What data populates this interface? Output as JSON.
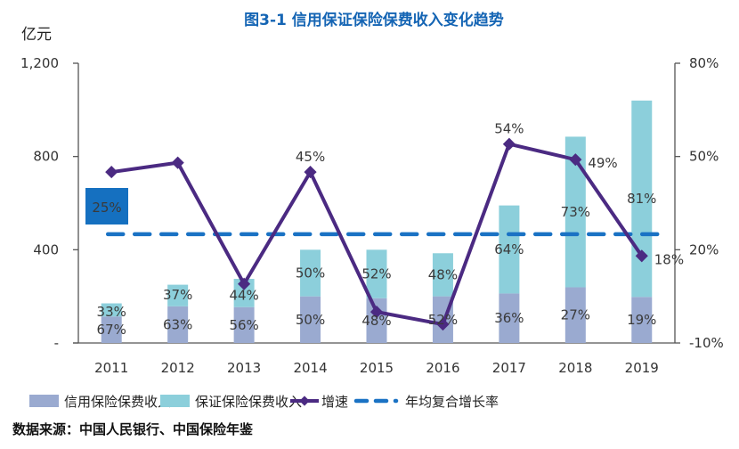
{
  "chart_data": {
    "type": "bar",
    "title": "图3-1 信用保证保险保费收入变化趋势",
    "ylabel": "亿元",
    "categories": [
      "2011",
      "2012",
      "2013",
      "2014",
      "2015",
      "2016",
      "2017",
      "2018",
      "2019"
    ],
    "y_left": {
      "ylim": [
        0,
        1200
      ],
      "ticks": [
        0,
        400,
        800,
        1200
      ],
      "tick_labels": [
        "-",
        "400",
        "800",
        "1,200"
      ]
    },
    "y_right": {
      "ylim": [
        -10,
        80
      ],
      "ticks": [
        -10,
        20,
        50,
        80
      ],
      "tick_labels": [
        "-10%",
        "20%",
        "50%",
        "80%"
      ]
    },
    "totals": [
      170,
      250,
      275,
      400,
      400,
      385,
      590,
      885,
      1040
    ],
    "series": [
      {
        "name": "信用保险保费收入",
        "kind": "stacked-bar",
        "color": "#9aaad0",
        "share_labels": [
          "67%",
          "63%",
          "56%",
          "50%",
          "48%",
          "52%",
          "36%",
          "27%",
          "19%"
        ],
        "shares": [
          0.67,
          0.63,
          0.56,
          0.5,
          0.48,
          0.52,
          0.36,
          0.27,
          0.19
        ]
      },
      {
        "name": "保证保险保费收入",
        "kind": "stacked-bar",
        "color": "#8ccfdb",
        "share_labels": [
          "33%",
          "37%",
          "44%",
          "50%",
          "52%",
          "48%",
          "64%",
          "73%",
          "81%"
        ],
        "shares": [
          0.33,
          0.37,
          0.44,
          0.5,
          0.52,
          0.48,
          0.64,
          0.73,
          0.81
        ]
      },
      {
        "name": "增速",
        "kind": "line",
        "axis": "right",
        "color": "#4b2a82",
        "values": [
          45,
          48,
          9,
          45,
          0,
          -4,
          54,
          49,
          18
        ],
        "point_labels": [
          "",
          "",
          "",
          "45%",
          "",
          "",
          "54%",
          "49%",
          "18%"
        ]
      },
      {
        "name": "年均复合增长率",
        "kind": "dashed-line",
        "axis": "right",
        "color": "#1a72c4",
        "value": 25,
        "label": "25%"
      }
    ],
    "grid": false,
    "legend": "bottom"
  },
  "source": "数据来源：中国人民银行、中国保险年鉴"
}
